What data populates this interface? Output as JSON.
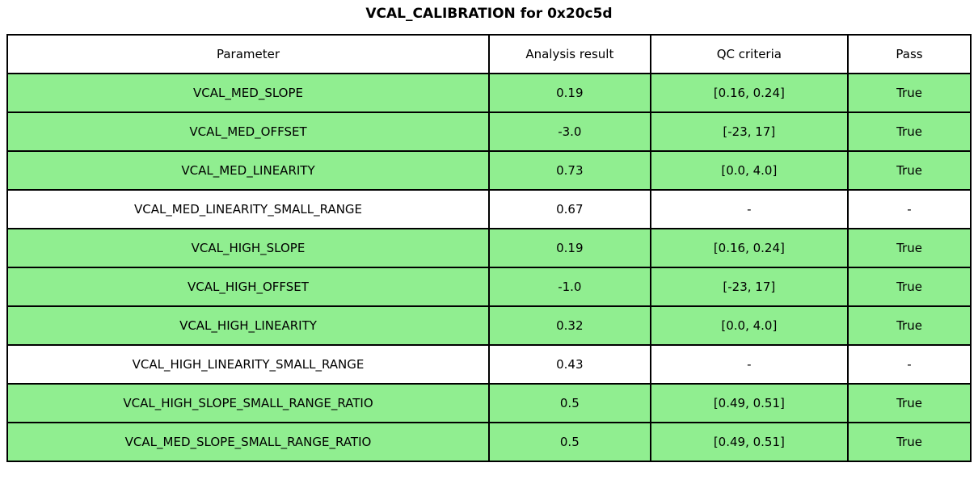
{
  "page_title": "VCAL_CALIBRATION for 0x20c5d",
  "colors": {
    "row_pass_green": "#90ee90",
    "row_plain": "#ffffff",
    "grid_line": "#000000",
    "text": "#000000"
  },
  "chart_data": {
    "type": "table",
    "title": "VCAL_CALIBRATION for 0x20c5d",
    "columns": [
      "Parameter",
      "Analysis result",
      "QC criteria",
      "Pass"
    ],
    "rows": [
      [
        "VCAL_MED_SLOPE",
        "0.19",
        "[0.16, 0.24]",
        "True"
      ],
      [
        "VCAL_MED_OFFSET",
        "-3.0",
        "[-23, 17]",
        "True"
      ],
      [
        "VCAL_MED_LINEARITY",
        "0.73",
        "[0.0, 4.0]",
        "True"
      ],
      [
        "VCAL_MED_LINEARITY_SMALL_RANGE",
        "0.67",
        "-",
        "-"
      ],
      [
        "VCAL_HIGH_SLOPE",
        "0.19",
        "[0.16, 0.24]",
        "True"
      ],
      [
        "VCAL_HIGH_OFFSET",
        "-1.0",
        "[-23, 17]",
        "True"
      ],
      [
        "VCAL_HIGH_LINEARITY",
        "0.32",
        "[0.0, 4.0]",
        "True"
      ],
      [
        "VCAL_HIGH_LINEARITY_SMALL_RANGE",
        "0.43",
        "-",
        "-"
      ],
      [
        "VCAL_HIGH_SLOPE_SMALL_RANGE_RATIO",
        "0.5",
        "[0.49, 0.51]",
        "True"
      ],
      [
        "VCAL_MED_SLOPE_SMALL_RANGE_RATIO",
        "0.5",
        "[0.49, 0.51]",
        "True"
      ]
    ],
    "row_highlighted": [
      true,
      true,
      true,
      false,
      true,
      true,
      true,
      false,
      true,
      true
    ],
    "legend_position": "none",
    "grid": true
  }
}
